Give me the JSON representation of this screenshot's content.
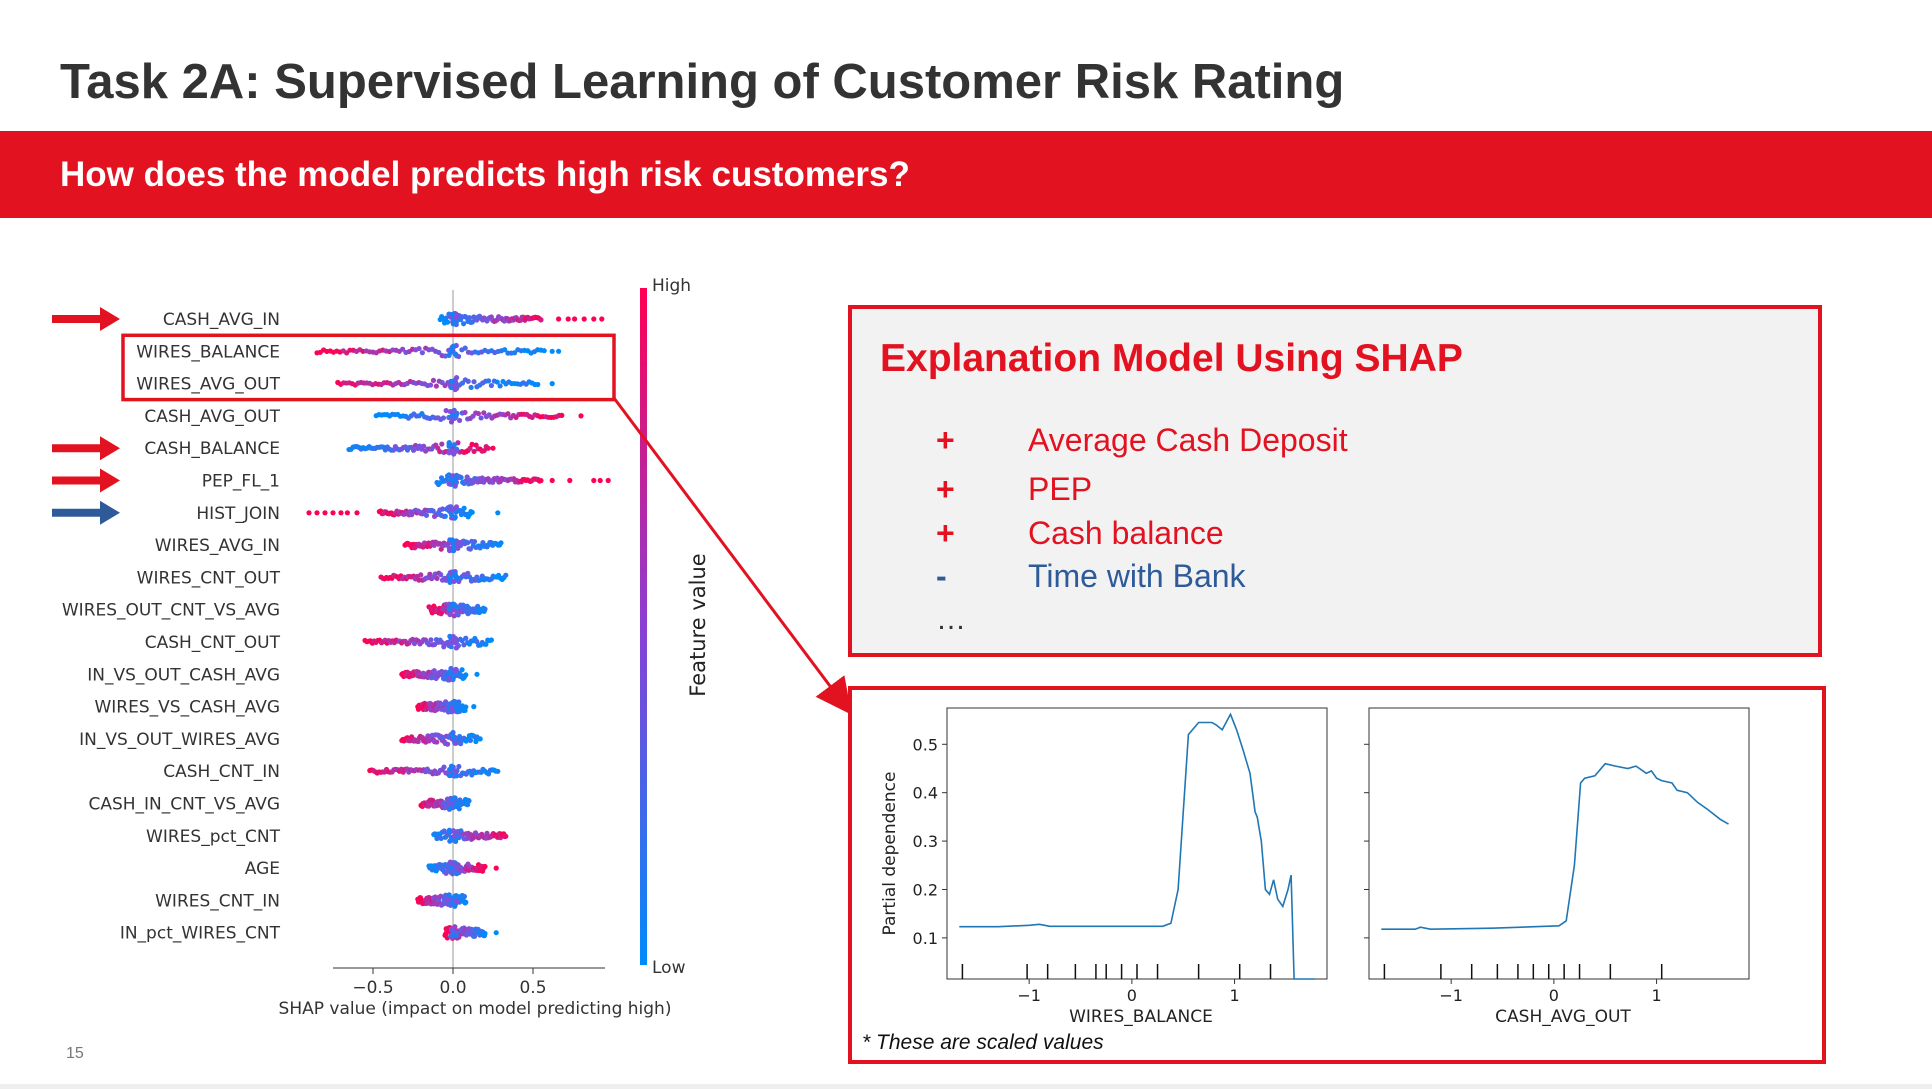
{
  "slide": {
    "title": "Task 2A: Supervised Learning of Customer Risk Rating",
    "banner": "How does the model predicts high risk customers?",
    "page_number": "15"
  },
  "colors": {
    "accent": "#e21220",
    "negative": "#2e5a9a",
    "shap_high": "#ff0052",
    "shap_low": "#008bfb",
    "line": "#1f77b4"
  },
  "chart_data": [
    {
      "type": "scatter",
      "subtype": "shap-summary-beeswarm",
      "xlabel": "SHAP value (impact on model predicting high)",
      "xticks": [
        -0.5,
        0.0,
        0.5
      ],
      "xtick_labels": [
        "−0.5",
        "0.0",
        "0.5"
      ],
      "xlim": [
        -1.0,
        1.15
      ],
      "colorbar": {
        "label": "Feature value",
        "high": "High",
        "low": "Low"
      },
      "features": [
        {
          "name": "CASH_AVG_IN",
          "min": -0.08,
          "max": 0.55,
          "outliers": [
            0.66,
            0.72,
            0.76,
            0.82,
            0.88,
            0.93
          ],
          "high_side": "right",
          "arrow": "red"
        },
        {
          "name": "WIRES_BALANCE",
          "min": -0.85,
          "max": 0.57,
          "outliers": [
            0.62,
            0.66
          ],
          "high_side": "left",
          "highlighted": true
        },
        {
          "name": "WIRES_AVG_OUT",
          "min": -0.72,
          "max": 0.53,
          "outliers": [
            0.62
          ],
          "high_side": "left",
          "highlighted": true
        },
        {
          "name": "CASH_AVG_OUT",
          "min": -0.48,
          "max": 0.68,
          "outliers": [
            0.8
          ],
          "high_side": "right"
        },
        {
          "name": "CASH_BALANCE",
          "min": -0.65,
          "max": 0.22,
          "outliers": [
            0.25
          ],
          "high_side": "right",
          "arrow": "red"
        },
        {
          "name": "PEP_FL_1",
          "min": -0.1,
          "max": 0.55,
          "outliers": [
            0.62,
            0.73,
            0.88,
            0.92,
            0.97
          ],
          "high_side": "right",
          "arrow": "red"
        },
        {
          "name": "HIST_JOIN",
          "min": -0.46,
          "max": 0.12,
          "outliers": [
            -0.9,
            -0.85,
            -0.8,
            -0.75,
            -0.7,
            -0.66,
            -0.6,
            0.28
          ],
          "high_side": "left",
          "arrow": "blue"
        },
        {
          "name": "WIRES_AVG_IN",
          "min": -0.3,
          "max": 0.3,
          "outliers": [],
          "high_side": "left"
        },
        {
          "name": "WIRES_CNT_OUT",
          "min": -0.45,
          "max": 0.33,
          "outliers": [],
          "high_side": "left"
        },
        {
          "name": "WIRES_OUT_CNT_VS_AVG",
          "min": -0.15,
          "max": 0.2,
          "outliers": [],
          "high_side": "left"
        },
        {
          "name": "CASH_CNT_OUT",
          "min": -0.55,
          "max": 0.24,
          "outliers": [],
          "high_side": "left"
        },
        {
          "name": "IN_VS_OUT_CASH_AVG",
          "min": -0.32,
          "max": 0.08,
          "outliers": [
            0.15
          ],
          "high_side": "left"
        },
        {
          "name": "WIRES_VS_CASH_AVG",
          "min": -0.22,
          "max": 0.08,
          "outliers": [
            0.13
          ],
          "high_side": "left"
        },
        {
          "name": "IN_VS_OUT_WIRES_AVG",
          "min": -0.32,
          "max": 0.15,
          "outliers": [
            0.17
          ],
          "high_side": "left"
        },
        {
          "name": "CASH_CNT_IN",
          "min": -0.52,
          "max": 0.28,
          "outliers": [],
          "high_side": "left"
        },
        {
          "name": "CASH_IN_CNT_VS_AVG",
          "min": -0.2,
          "max": 0.1,
          "outliers": [],
          "high_side": "left"
        },
        {
          "name": "WIRES_pct_CNT",
          "min": -0.12,
          "max": 0.33,
          "outliers": [],
          "high_side": "right"
        },
        {
          "name": "AGE",
          "min": -0.15,
          "max": 0.2,
          "outliers": [
            0.27
          ],
          "high_side": "right"
        },
        {
          "name": "WIRES_CNT_IN",
          "min": -0.22,
          "max": 0.08,
          "outliers": [],
          "high_side": "left"
        },
        {
          "name": "IN_pct_WIRES_CNT",
          "min": -0.05,
          "max": 0.2,
          "outliers": [
            0.27
          ],
          "high_side": "left"
        }
      ]
    },
    {
      "type": "line",
      "xlabel": "WIRES_BALANCE",
      "ylabel": "Partial dependence",
      "xticks": [
        -1,
        0,
        1
      ],
      "xtick_labels": [
        "−1",
        "0",
        "1"
      ],
      "yticks": [
        0.1,
        0.2,
        0.3,
        0.4,
        0.5
      ],
      "ytick_labels": [
        "0.1",
        "0.2",
        "0.3",
        "0.4",
        "0.5"
      ],
      "xlim": [
        -1.8,
        1.9
      ],
      "ylim": [
        0.015,
        0.575
      ],
      "rug_x": [
        -1.65,
        -1.02,
        -0.82,
        -0.55,
        -0.35,
        -0.25,
        -0.1,
        0.05,
        0.25,
        0.65,
        1.05,
        1.35
      ],
      "x": [
        -1.68,
        -1.3,
        -1.0,
        -0.9,
        -0.8,
        -0.5,
        0.0,
        0.3,
        0.38,
        0.45,
        0.55,
        0.65,
        0.78,
        0.82,
        0.88,
        0.96,
        1.02,
        1.08,
        1.15,
        1.2,
        1.22,
        1.26,
        1.3,
        1.34,
        1.38,
        1.42,
        1.47,
        1.52,
        1.55,
        1.58,
        1.78
      ],
      "y": [
        0.123,
        0.123,
        0.126,
        0.128,
        0.124,
        0.124,
        0.124,
        0.124,
        0.13,
        0.2,
        0.52,
        0.545,
        0.545,
        0.54,
        0.53,
        0.562,
        0.53,
        0.49,
        0.44,
        0.36,
        0.35,
        0.3,
        0.2,
        0.19,
        0.22,
        0.18,
        0.165,
        0.2,
        0.23,
        0.015,
        0.015
      ]
    },
    {
      "type": "line",
      "xlabel": "CASH_AVG_OUT",
      "ylabel": "",
      "xticks": [
        -1,
        0,
        1
      ],
      "xtick_labels": [
        "−1",
        "0",
        "1"
      ],
      "yticks": [
        0.1,
        0.2,
        0.3,
        0.4,
        0.5
      ],
      "ytick_labels": [
        "",
        "",
        "",
        "",
        ""
      ],
      "xlim": [
        -1.8,
        1.9
      ],
      "ylim": [
        0.015,
        0.575
      ],
      "rug_x": [
        -1.65,
        -1.1,
        -0.8,
        -0.55,
        -0.35,
        -0.2,
        -0.05,
        0.1,
        0.25,
        0.55,
        1.05
      ],
      "x": [
        -1.68,
        -1.35,
        -1.3,
        -1.2,
        -0.6,
        0.05,
        0.12,
        0.2,
        0.26,
        0.3,
        0.4,
        0.5,
        0.6,
        0.72,
        0.8,
        0.9,
        0.95,
        1.0,
        1.05,
        1.15,
        1.2,
        1.3,
        1.4,
        1.5,
        1.62,
        1.7
      ],
      "y": [
        0.118,
        0.118,
        0.122,
        0.118,
        0.12,
        0.125,
        0.135,
        0.25,
        0.42,
        0.43,
        0.435,
        0.46,
        0.455,
        0.45,
        0.455,
        0.44,
        0.445,
        0.43,
        0.425,
        0.42,
        0.405,
        0.4,
        0.38,
        0.365,
        0.345,
        0.335
      ]
    }
  ],
  "explanation": {
    "title": "Explanation Model Using SHAP",
    "items": [
      {
        "sign": "+",
        "text": "Average Cash Deposit",
        "color": "#e21220"
      },
      {
        "sign": "+",
        "text": "PEP",
        "color": "#e21220"
      },
      {
        "sign": "+",
        "text": "Cash balance",
        "color": "#e21220"
      },
      {
        "sign": "-",
        "text": "Time with Bank",
        "color": "#2e5a9a"
      }
    ],
    "ellipsis": "…"
  },
  "pd_note": "* These are scaled values"
}
